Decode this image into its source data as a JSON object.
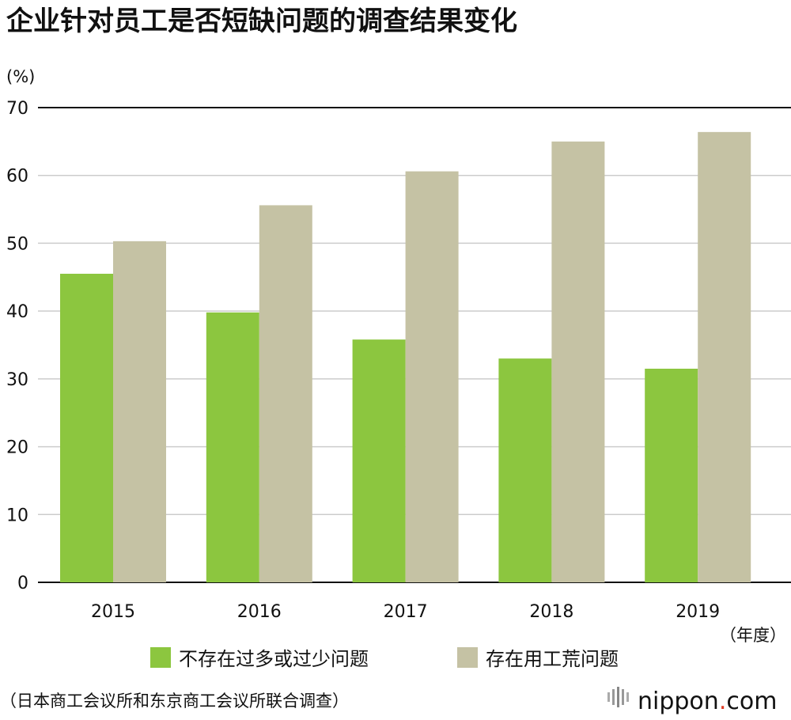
{
  "title": "企业针对员工是否短缺问题的调查结果变化",
  "source": "（日本商工会议所和东京商工会议所联合调查）",
  "brand": {
    "name": "nippon",
    "dot": ".",
    "suffix": "com"
  },
  "colors": {
    "series1": "#8cc63f",
    "series2": "#c5c2a4",
    "grid": "#cccccc",
    "axis": "#111111",
    "brand_dot": "#e03b24"
  },
  "chart_data": {
    "type": "bar",
    "title": "企业针对员工是否短缺问题的调查结果变化",
    "ylabel": "(%)",
    "xlabel": "（年度）",
    "categories": [
      "2015",
      "2016",
      "2017",
      "2018",
      "2019"
    ],
    "series": [
      {
        "name": "不存在过多或过少问题",
        "values": [
          45.5,
          39.8,
          35.8,
          33.0,
          31.5
        ]
      },
      {
        "name": "存在用工荒问题",
        "values": [
          50.3,
          55.6,
          60.6,
          65.0,
          66.4
        ]
      }
    ],
    "ylim": [
      0,
      70
    ],
    "yticks": [
      0,
      10,
      20,
      30,
      40,
      50,
      60,
      70
    ],
    "grid": true,
    "legend": "bottom"
  }
}
